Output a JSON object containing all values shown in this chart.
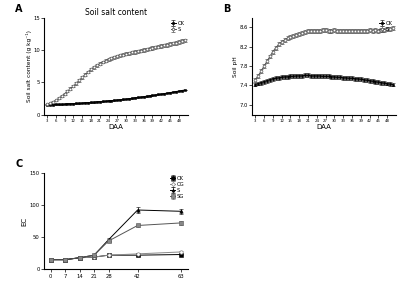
{
  "title_A": "Soil salt content",
  "ylabel_A": "Soil salt content (g kg⁻¹)",
  "xlabel_A": "DAA",
  "ylabel_B": "Soil pH",
  "xlabel_B": "DAA",
  "ylabel_C": "EC",
  "xlabel_C": "",
  "legend_A": [
    "CK",
    "S"
  ],
  "legend_B": [
    "CK",
    "S"
  ],
  "legend_C": [
    "CK",
    "CG",
    "S",
    "SG"
  ],
  "daa_AB": [
    3,
    4,
    5,
    6,
    7,
    8,
    9,
    10,
    11,
    12,
    13,
    14,
    15,
    16,
    17,
    18,
    19,
    20,
    21,
    22,
    23,
    24,
    25,
    26,
    27,
    28,
    29,
    30,
    31,
    32,
    33,
    34,
    35,
    36,
    37,
    38,
    39,
    40,
    41,
    42,
    43,
    44,
    45,
    46,
    47,
    48,
    49,
    50
  ],
  "CK_salt": [
    1.5,
    1.52,
    1.54,
    1.56,
    1.58,
    1.6,
    1.62,
    1.65,
    1.67,
    1.7,
    1.72,
    1.75,
    1.78,
    1.82,
    1.85,
    1.88,
    1.92,
    1.96,
    2.0,
    2.04,
    2.08,
    2.12,
    2.16,
    2.21,
    2.26,
    2.3,
    2.35,
    2.4,
    2.46,
    2.52,
    2.58,
    2.64,
    2.7,
    2.77,
    2.84,
    2.9,
    2.97,
    3.04,
    3.11,
    3.18,
    3.25,
    3.32,
    3.4,
    3.48,
    3.56,
    3.64,
    3.72,
    3.8
  ],
  "S_salt": [
    1.6,
    1.75,
    1.95,
    2.2,
    2.5,
    2.85,
    3.2,
    3.6,
    4.0,
    4.4,
    4.85,
    5.3,
    5.75,
    6.2,
    6.6,
    7.0,
    7.35,
    7.65,
    7.9,
    8.15,
    8.35,
    8.55,
    8.72,
    8.88,
    9.02,
    9.15,
    9.28,
    9.4,
    9.52,
    9.62,
    9.72,
    9.82,
    9.92,
    10.02,
    10.12,
    10.22,
    10.32,
    10.42,
    10.52,
    10.62,
    10.72,
    10.82,
    10.92,
    11.02,
    11.12,
    11.22,
    11.35,
    11.48
  ],
  "CK_salt_err": [
    0.06,
    0.06,
    0.06,
    0.06,
    0.06,
    0.06,
    0.06,
    0.06,
    0.06,
    0.06,
    0.06,
    0.06,
    0.06,
    0.06,
    0.06,
    0.06,
    0.06,
    0.06,
    0.06,
    0.06,
    0.06,
    0.06,
    0.06,
    0.06,
    0.06,
    0.06,
    0.06,
    0.06,
    0.06,
    0.06,
    0.06,
    0.06,
    0.06,
    0.06,
    0.06,
    0.06,
    0.06,
    0.06,
    0.06,
    0.06,
    0.06,
    0.06,
    0.06,
    0.06,
    0.06,
    0.06,
    0.06,
    0.06
  ],
  "S_salt_err": [
    0.08,
    0.08,
    0.1,
    0.12,
    0.14,
    0.15,
    0.16,
    0.18,
    0.2,
    0.2,
    0.22,
    0.22,
    0.22,
    0.22,
    0.22,
    0.22,
    0.22,
    0.22,
    0.22,
    0.22,
    0.22,
    0.22,
    0.24,
    0.24,
    0.24,
    0.24,
    0.24,
    0.24,
    0.24,
    0.24,
    0.26,
    0.26,
    0.26,
    0.26,
    0.26,
    0.26,
    0.26,
    0.26,
    0.28,
    0.28,
    0.28,
    0.28,
    0.28,
    0.28,
    0.28,
    0.28,
    0.3,
    0.3
  ],
  "CK_ph": [
    7.42,
    7.44,
    7.46,
    7.48,
    7.5,
    7.52,
    7.54,
    7.55,
    7.56,
    7.57,
    7.58,
    7.58,
    7.59,
    7.59,
    7.6,
    7.6,
    7.6,
    7.61,
    7.61,
    7.6,
    7.6,
    7.6,
    7.6,
    7.59,
    7.59,
    7.59,
    7.58,
    7.58,
    7.57,
    7.57,
    7.56,
    7.56,
    7.55,
    7.55,
    7.54,
    7.54,
    7.53,
    7.52,
    7.51,
    7.5,
    7.49,
    7.48,
    7.47,
    7.46,
    7.45,
    7.44,
    7.43,
    7.42
  ],
  "S_ph": [
    7.52,
    7.6,
    7.7,
    7.8,
    7.9,
    8.0,
    8.1,
    8.18,
    8.25,
    8.3,
    8.34,
    8.38,
    8.4,
    8.42,
    8.44,
    8.46,
    8.48,
    8.5,
    8.52,
    8.53,
    8.52,
    8.53,
    8.53,
    8.54,
    8.54,
    8.53,
    8.53,
    8.54,
    8.53,
    8.52,
    8.52,
    8.53,
    8.53,
    8.52,
    8.53,
    8.52,
    8.53,
    8.52,
    8.53,
    8.54,
    8.53,
    8.54,
    8.53,
    8.54,
    8.54,
    8.56,
    8.56,
    8.58
  ],
  "CK_ph_err": [
    0.04,
    0.04,
    0.04,
    0.04,
    0.04,
    0.04,
    0.04,
    0.04,
    0.04,
    0.04,
    0.04,
    0.04,
    0.04,
    0.04,
    0.04,
    0.04,
    0.04,
    0.04,
    0.04,
    0.04,
    0.04,
    0.04,
    0.04,
    0.04,
    0.04,
    0.04,
    0.04,
    0.04,
    0.04,
    0.04,
    0.04,
    0.04,
    0.04,
    0.04,
    0.04,
    0.04,
    0.04,
    0.04,
    0.04,
    0.04,
    0.04,
    0.04,
    0.04,
    0.04,
    0.04,
    0.04,
    0.04,
    0.04
  ],
  "S_ph_err": [
    0.04,
    0.04,
    0.04,
    0.04,
    0.04,
    0.04,
    0.04,
    0.04,
    0.04,
    0.04,
    0.04,
    0.04,
    0.04,
    0.04,
    0.04,
    0.04,
    0.04,
    0.04,
    0.04,
    0.04,
    0.04,
    0.04,
    0.04,
    0.04,
    0.04,
    0.04,
    0.04,
    0.04,
    0.04,
    0.04,
    0.04,
    0.04,
    0.04,
    0.04,
    0.04,
    0.04,
    0.04,
    0.04,
    0.04,
    0.04,
    0.04,
    0.04,
    0.04,
    0.04,
    0.04,
    0.04,
    0.04,
    0.04
  ],
  "daa_C": [
    0,
    7,
    14,
    21,
    28,
    42,
    63
  ],
  "CK_ec": [
    15,
    15,
    18,
    19,
    22,
    22,
    23
  ],
  "CG_ec": [
    15,
    15,
    18,
    19,
    22,
    24,
    27
  ],
  "S_ec": [
    15,
    15,
    18,
    22,
    46,
    92,
    90
  ],
  "SG_ec": [
    15,
    15,
    18,
    22,
    44,
    68,
    72
  ],
  "CK_ec_err": [
    0.5,
    0.5,
    0.5,
    0.5,
    1,
    1,
    1
  ],
  "CG_ec_err": [
    0.5,
    0.5,
    0.5,
    0.5,
    1,
    1,
    1.5
  ],
  "S_ec_err": [
    0.5,
    0.5,
    0.5,
    1,
    2,
    4,
    4
  ],
  "SG_ec_err": [
    0.5,
    0.5,
    0.5,
    1,
    2,
    3,
    3
  ],
  "ylim_A": [
    0,
    15
  ],
  "ylim_B": [
    6.8,
    8.8
  ],
  "ylim_C": [
    0,
    150
  ],
  "yticks_A": [
    0,
    5,
    10,
    15
  ],
  "yticks_B": [
    7.0,
    7.4,
    7.8,
    8.2,
    8.6
  ],
  "yticks_C": [
    0,
    50,
    100,
    150
  ],
  "xticks_C": [
    0,
    7,
    14,
    21,
    28,
    42,
    63
  ],
  "panel_A_label": "A",
  "panel_B_label": "B",
  "panel_C_label": "C"
}
